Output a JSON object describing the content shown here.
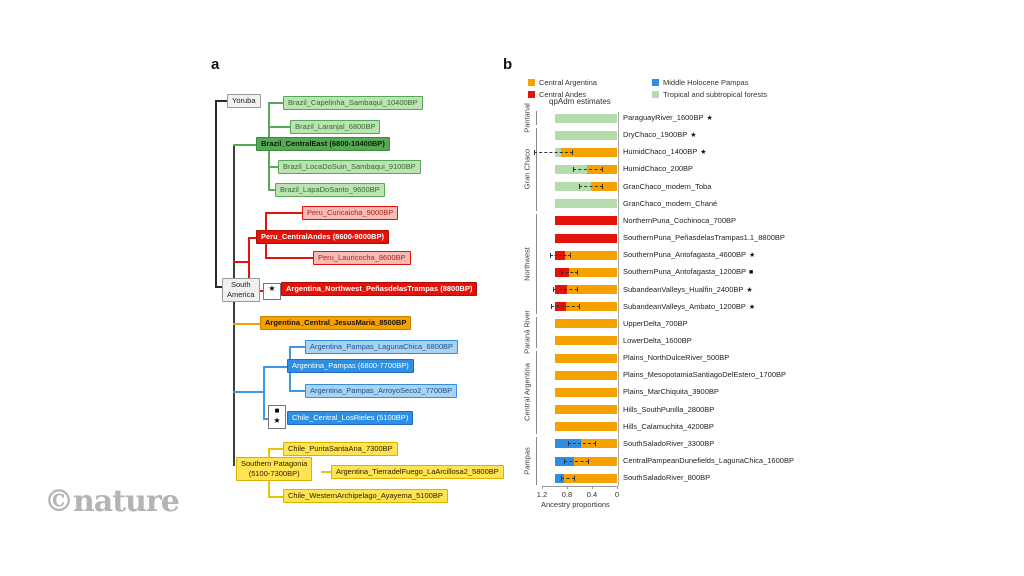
{
  "watermark": "©nature",
  "colors": {
    "central_argentina": "#F5A100",
    "central_andes": "#E3120B",
    "middle_holocene_pampas": "#2D8EE3",
    "tropical_forests": "#B4DCAC"
  },
  "panel_a": {
    "label": "a",
    "nodes": [
      {
        "id": "yoruba",
        "label": "Yoruba",
        "group": "outgroup"
      },
      {
        "id": "capelinha",
        "label": "Brazil_Capelinha_Sambaqui_10400BP",
        "group": "forest-light"
      },
      {
        "id": "laranjal",
        "label": "Brazil_Laranjal_6800BP",
        "group": "forest-light"
      },
      {
        "id": "central-east",
        "label": "Brazil_CentralEast (6800-10400BP)",
        "group": "forest-dark"
      },
      {
        "id": "locadosuin",
        "label": "Brazil_LocaDoSuin_Sambaqui_9100BP",
        "group": "forest-light"
      },
      {
        "id": "lapadosanto",
        "label": "Brazil_LapaDoSanto_9600BP",
        "group": "forest-light"
      },
      {
        "id": "cuncaicha",
        "label": "Peru_Cuncaicha_9000BP",
        "group": "andes-light"
      },
      {
        "id": "peru-central-andes",
        "label": "Peru_CentralAndes (8600-9000BP)",
        "group": "andes-dark"
      },
      {
        "id": "lauricocha",
        "label": "Peru_Lauricocha_8600BP",
        "group": "andes-light"
      },
      {
        "id": "penas",
        "label": "Argentina_Northwest_PeñasdelasTrampas (8800BP)",
        "group": "andes-dark",
        "marker": "★"
      },
      {
        "id": "south-america",
        "label": "South\nAmerica",
        "group": "outgroup"
      },
      {
        "id": "jesusmaria",
        "label": "Argentina_Central_JesusMaria_8500BP",
        "group": "central-arg"
      },
      {
        "id": "lagunachica",
        "label": "Argentina_Pampas_LagunaChica_6800BP",
        "group": "pampas-light"
      },
      {
        "id": "pampas-node",
        "label": "Argentina_Pampas (6800-7700BP)",
        "group": "pampas-dark"
      },
      {
        "id": "arroyoseco",
        "label": "Argentina_Pampas_ArroyoSeco2_7700BP",
        "group": "pampas-light"
      },
      {
        "id": "losrieles",
        "label": "Chile_Central_LosRieles (5100BP)",
        "group": "pampas-dark",
        "marker": "■\n★"
      },
      {
        "id": "puntasantaana",
        "label": "Chile_PuntaSantaAna_7300BP",
        "group": "patagonia"
      },
      {
        "id": "southern-patagonia",
        "label": "Southern Patagonia\n(5100-7300BP)",
        "group": "patagonia"
      },
      {
        "id": "tierradelfuego",
        "label": "Argentina_TierradelFuego_LaArcillosa2_5800BP",
        "group": "patagonia"
      },
      {
        "id": "ayayema",
        "label": "Chile_WesternArchipelago_Ayayema_5100BP",
        "group": "patagonia"
      }
    ]
  },
  "panel_b": {
    "label": "b",
    "title": "qpAdm estimates"
  },
  "chart_data": {
    "type": "stacked-bar-horizontal",
    "title": "qpAdm estimates",
    "xlabel": "Ancestry proportions",
    "axis": {
      "ticks": [
        "1.2",
        "0.8",
        "0.4",
        "0"
      ],
      "tick_values": [
        1.2,
        0.8,
        0.4,
        0
      ],
      "reversed": true,
      "range": [
        0,
        1.2
      ]
    },
    "legend": [
      {
        "label": "Central Argentina",
        "color_key": "central_argentina"
      },
      {
        "label": "Central Andes",
        "color_key": "central_andes"
      },
      {
        "label": "Middle Holocene Pampas",
        "color_key": "middle_holocene_pampas"
      },
      {
        "label": "Tropical and subtropical forests",
        "color_key": "tropical_forests"
      }
    ],
    "groups": [
      {
        "name": "Pantanal",
        "first": 0,
        "last": 0
      },
      {
        "name": "Gran Chaco",
        "first": 1,
        "last": 5
      },
      {
        "name": "Northwest",
        "first": 6,
        "last": 11
      },
      {
        "name": "Paraná River",
        "first": 12,
        "last": 13
      },
      {
        "name": "Central Argentina",
        "first": 14,
        "last": 18
      },
      {
        "name": "Pampas",
        "first": 19,
        "last": 21
      }
    ],
    "rows": [
      {
        "label": "ParaguayRiver_1600BP",
        "marker": "★",
        "segments": [
          {
            "ancestry": "tropical_forests",
            "value": 1.0
          }
        ],
        "error": null
      },
      {
        "label": "DryChaco_1900BP",
        "marker": "★",
        "segments": [
          {
            "ancestry": "tropical_forests",
            "value": 1.0
          }
        ],
        "error": null
      },
      {
        "label": "HumidChaco_1400BP",
        "marker": "★",
        "segments": [
          {
            "ancestry": "tropical_forests",
            "value": 0.11
          },
          {
            "ancestry": "central_argentina",
            "value": 0.89
          }
        ],
        "error": {
          "lo": 0.7,
          "hi": 1.33
        }
      },
      {
        "label": "HumidChaco_200BP",
        "marker": null,
        "segments": [
          {
            "ancestry": "tropical_forests",
            "value": 0.52
          },
          {
            "ancestry": "central_argentina",
            "value": 0.48
          }
        ],
        "error": {
          "lo": 0.23,
          "hi": 0.71
        }
      },
      {
        "label": "GranChaco_modern_Toba",
        "marker": null,
        "segments": [
          {
            "ancestry": "tropical_forests",
            "value": 0.58
          },
          {
            "ancestry": "central_argentina",
            "value": 0.42
          }
        ],
        "error": {
          "lo": 0.23,
          "hi": 0.61
        }
      },
      {
        "label": "GranChaco_modern_Chané",
        "marker": null,
        "segments": [
          {
            "ancestry": "tropical_forests",
            "value": 1.0
          }
        ],
        "error": null
      },
      {
        "label": "NorthernPuna_Cochinoca_700BP",
        "marker": null,
        "segments": [
          {
            "ancestry": "central_andes",
            "value": 1.0
          }
        ],
        "error": null
      },
      {
        "label": "SouthernPuna_PeñasdelasTrampas1.1_8800BP",
        "marker": null,
        "segments": [
          {
            "ancestry": "central_andes",
            "value": 1.0
          }
        ],
        "error": null
      },
      {
        "label": "SouthernPuna_Antofagasta_4600BP",
        "marker": "★",
        "segments": [
          {
            "ancestry": "central_andes",
            "value": 0.16
          },
          {
            "ancestry": "central_argentina",
            "value": 0.84
          }
        ],
        "error": {
          "lo": 0.74,
          "hi": 1.07
        }
      },
      {
        "label": "SouthernPuna_Antofagasta_1200BP",
        "marker": "■",
        "segments": [
          {
            "ancestry": "central_andes",
            "value": 0.23
          },
          {
            "ancestry": "central_argentina",
            "value": 0.77
          }
        ],
        "error": {
          "lo": 0.62,
          "hi": 0.89
        }
      },
      {
        "label": "SubandeanValleys_Hualfin_2400BP",
        "marker": "★",
        "segments": [
          {
            "ancestry": "central_andes",
            "value": 0.2
          },
          {
            "ancestry": "central_argentina",
            "value": 0.8
          }
        ],
        "error": {
          "lo": 0.63,
          "hi": 1.02
        }
      },
      {
        "label": "SubandeanValleys_Ambato_1200BP",
        "marker": "★",
        "segments": [
          {
            "ancestry": "central_andes",
            "value": 0.18
          },
          {
            "ancestry": "central_argentina",
            "value": 0.82
          }
        ],
        "error": {
          "lo": 0.6,
          "hi": 1.05
        }
      },
      {
        "label": "UpperDelta_700BP",
        "marker": null,
        "segments": [
          {
            "ancestry": "central_argentina",
            "value": 1.0
          }
        ],
        "error": null
      },
      {
        "label": "LowerDelta_1600BP",
        "marker": null,
        "segments": [
          {
            "ancestry": "central_argentina",
            "value": 1.0
          }
        ],
        "error": null
      },
      {
        "label": "Plains_NorthDulceRiver_500BP",
        "marker": null,
        "segments": [
          {
            "ancestry": "central_argentina",
            "value": 1.0
          }
        ],
        "error": null
      },
      {
        "label": "Plains_MesopotamiaSantiagoDelEstero_1700BP",
        "marker": null,
        "segments": [
          {
            "ancestry": "central_argentina",
            "value": 1.0
          }
        ],
        "error": null
      },
      {
        "label": "Plains_MarChiquita_3900BP",
        "marker": null,
        "segments": [
          {
            "ancestry": "central_argentina",
            "value": 1.0
          }
        ],
        "error": null
      },
      {
        "label": "Hills_SouthPunilla_2800BP",
        "marker": null,
        "segments": [
          {
            "ancestry": "central_argentina",
            "value": 1.0
          }
        ],
        "error": null
      },
      {
        "label": "Hills_Calamuchita_4200BP",
        "marker": null,
        "segments": [
          {
            "ancestry": "central_argentina",
            "value": 1.0
          }
        ],
        "error": null
      },
      {
        "label": "SouthSaladoRiver_3300BP",
        "marker": null,
        "segments": [
          {
            "ancestry": "middle_holocene_pampas",
            "value": 0.43
          },
          {
            "ancestry": "central_argentina",
            "value": 0.57
          }
        ],
        "error": {
          "lo": 0.33,
          "hi": 0.79
        }
      },
      {
        "label": "CentralPampeanDunefields_LagunaChica_1600BP",
        "marker": null,
        "segments": [
          {
            "ancestry": "middle_holocene_pampas",
            "value": 0.31
          },
          {
            "ancestry": "central_argentina",
            "value": 0.69
          }
        ],
        "error": {
          "lo": 0.45,
          "hi": 0.85
        }
      },
      {
        "label": "SouthSaladoRiver_800BP",
        "marker": null,
        "segments": [
          {
            "ancestry": "middle_holocene_pampas",
            "value": 0.15
          },
          {
            "ancestry": "central_argentina",
            "value": 0.85
          }
        ],
        "error": {
          "lo": 0.68,
          "hi": 0.9
        }
      }
    ]
  }
}
